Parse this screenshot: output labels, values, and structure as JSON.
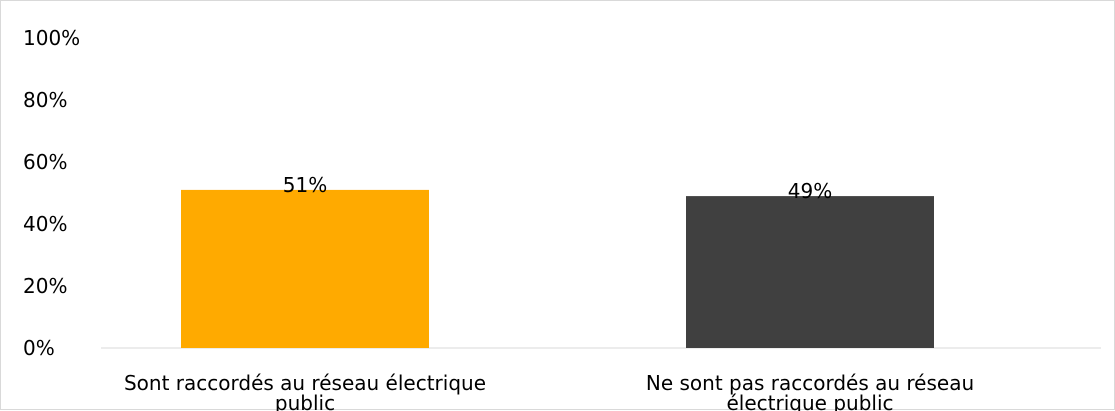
{
  "chart_data": {
    "type": "bar",
    "categories": [
      [
        "Sont raccordés au réseau électrique",
        "public"
      ],
      [
        "Ne sont pas raccordés au réseau",
        "électrique public"
      ]
    ],
    "values": [
      51,
      49
    ],
    "data_labels": [
      "51%",
      "49%"
    ],
    "colors": [
      "#FFAA00",
      "#404040"
    ],
    "ylim": [
      0,
      100
    ],
    "y_ticks": [
      0,
      20,
      40,
      60,
      80,
      100
    ],
    "y_tick_labels": [
      "0%",
      "20%",
      "40%",
      "60%",
      "80%",
      "100%"
    ],
    "grid": false,
    "legend": "none"
  }
}
